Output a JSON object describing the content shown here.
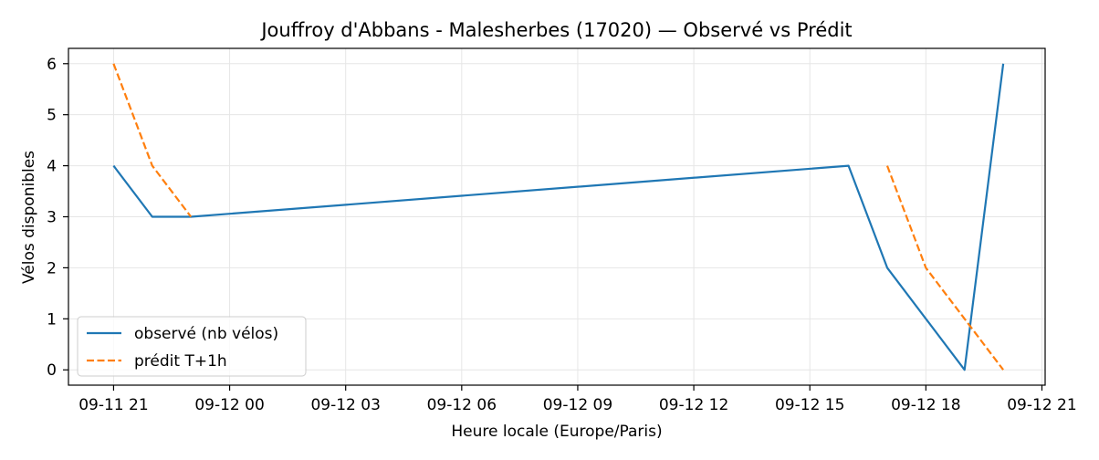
{
  "chart_data": {
    "type": "line",
    "title": "Jouffroy d'Abbans - Malesherbes (17020) — Observé vs Prédit",
    "xlabel": "Heure locale (Europe/Paris)",
    "ylabel": "Vélos disponibles",
    "x_ticks": [
      {
        "value": "2024-09-11T21:00",
        "label": "09-11 21"
      },
      {
        "value": "2024-09-12T00:00",
        "label": "09-12 00"
      },
      {
        "value": "2024-09-12T03:00",
        "label": "09-12 03"
      },
      {
        "value": "2024-09-12T06:00",
        "label": "09-12 06"
      },
      {
        "value": "2024-09-12T09:00",
        "label": "09-12 09"
      },
      {
        "value": "2024-09-12T12:00",
        "label": "09-12 12"
      },
      {
        "value": "2024-09-12T15:00",
        "label": "09-12 15"
      },
      {
        "value": "2024-09-12T18:00",
        "label": "09-12 18"
      },
      {
        "value": "2024-09-12T21:00",
        "label": "09-12 21"
      }
    ],
    "y_ticks": [
      0,
      1,
      2,
      3,
      4,
      5,
      6
    ],
    "xlim": [
      "2024-09-11T19:50",
      "2024-09-12T21:05"
    ],
    "ylim": [
      -0.3,
      6.3
    ],
    "grid": true,
    "legend_position": "lower-left",
    "series": [
      {
        "name": "observé (nb vélos)",
        "style": "solid",
        "color": "#1f77b4",
        "points": [
          {
            "x": "2024-09-11T21:00",
            "y": 4
          },
          {
            "x": "2024-09-11T22:00",
            "y": 3
          },
          {
            "x": "2024-09-11T23:00",
            "y": 3
          },
          {
            "x": "2024-09-12T16:00",
            "y": 4
          },
          {
            "x": "2024-09-12T17:00",
            "y": 2
          },
          {
            "x": "2024-09-12T19:00",
            "y": 0
          },
          {
            "x": "2024-09-12T20:00",
            "y": 6
          }
        ]
      },
      {
        "name": "prédit T+1h",
        "style": "dashed",
        "color": "#ff7f0e",
        "points": [
          {
            "x": "2024-09-11T21:00",
            "y": 6
          },
          {
            "x": "2024-09-11T22:00",
            "y": 4
          },
          {
            "x": "2024-09-11T23:00",
            "y": 3
          },
          {
            "x": null,
            "y": null
          },
          {
            "x": "2024-09-12T17:00",
            "y": 4
          },
          {
            "x": "2024-09-12T18:00",
            "y": 2
          },
          {
            "x": "2024-09-12T19:00",
            "y": 1
          },
          {
            "x": "2024-09-12T20:00",
            "y": 0
          }
        ]
      }
    ]
  }
}
